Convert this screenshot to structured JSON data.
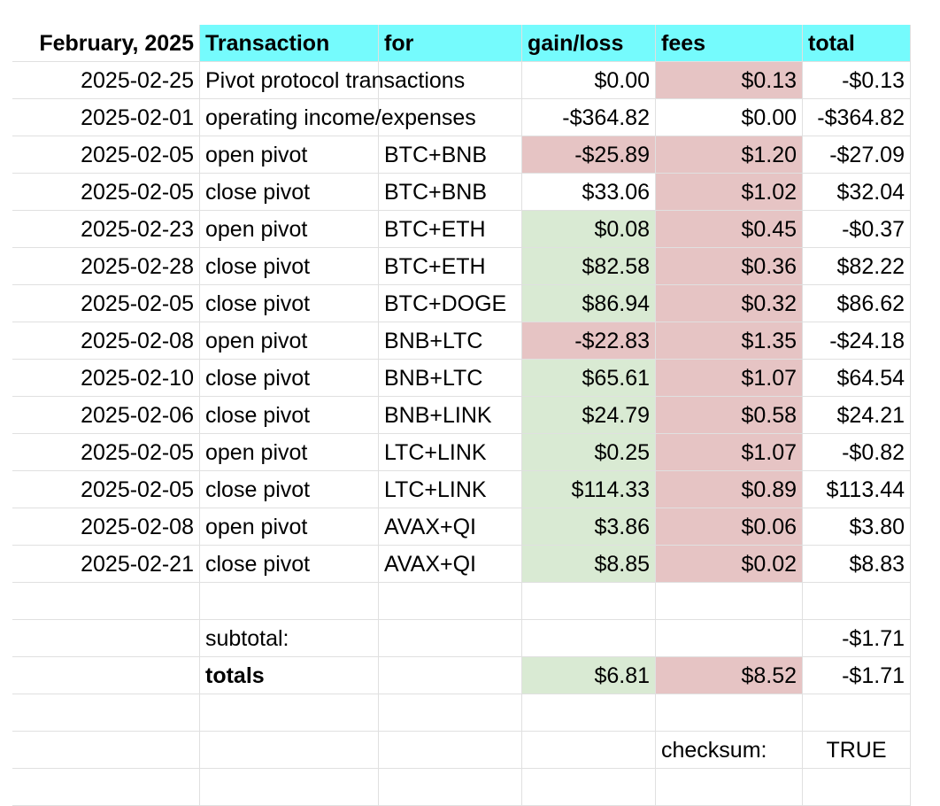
{
  "header": {
    "month": "February, 2025",
    "transaction": "Transaction",
    "for": "for",
    "gain_loss": "gain/loss",
    "fees": "fees",
    "total": "total"
  },
  "rows": [
    {
      "date": "2025-02-25",
      "transaction": "Pivot protocol transactions",
      "for": "",
      "gain": "$0.00",
      "fees": "$0.13",
      "total": "-$0.13",
      "gain_color": "none",
      "fees_color": "red"
    },
    {
      "date": "2025-02-01",
      "transaction": "operating income/expenses",
      "for": "",
      "gain": "-$364.82",
      "fees": "$0.00",
      "total": "-$364.82",
      "gain_color": "none",
      "fees_color": "none"
    },
    {
      "date": "2025-02-05",
      "transaction": "open pivot",
      "for": "BTC+BNB",
      "gain": "-$25.89",
      "fees": "$1.20",
      "total": "-$27.09",
      "gain_color": "red",
      "fees_color": "red"
    },
    {
      "date": "2025-02-05",
      "transaction": "close pivot",
      "for": "BTC+BNB",
      "gain": "$33.06",
      "fees": "$1.02",
      "total": "$32.04",
      "gain_color": "none",
      "fees_color": "red"
    },
    {
      "date": "2025-02-23",
      "transaction": "open pivot",
      "for": "BTC+ETH",
      "gain": "$0.08",
      "fees": "$0.45",
      "total": "-$0.37",
      "gain_color": "green",
      "fees_color": "red"
    },
    {
      "date": "2025-02-28",
      "transaction": "close pivot",
      "for": "BTC+ETH",
      "gain": "$82.58",
      "fees": "$0.36",
      "total": "$82.22",
      "gain_color": "green",
      "fees_color": "red"
    },
    {
      "date": "2025-02-05",
      "transaction": "close pivot",
      "for": "BTC+DOGE",
      "gain": "$86.94",
      "fees": "$0.32",
      "total": "$86.62",
      "gain_color": "green",
      "fees_color": "red"
    },
    {
      "date": "2025-02-08",
      "transaction": "open pivot",
      "for": "BNB+LTC",
      "gain": "-$22.83",
      "fees": "$1.35",
      "total": "-$24.18",
      "gain_color": "red",
      "fees_color": "red"
    },
    {
      "date": "2025-02-10",
      "transaction": "close pivot",
      "for": "BNB+LTC",
      "gain": "$65.61",
      "fees": "$1.07",
      "total": "$64.54",
      "gain_color": "green",
      "fees_color": "red"
    },
    {
      "date": "2025-02-06",
      "transaction": "close pivot",
      "for": "BNB+LINK",
      "gain": "$24.79",
      "fees": "$0.58",
      "total": "$24.21",
      "gain_color": "green",
      "fees_color": "red"
    },
    {
      "date": "2025-02-05",
      "transaction": "open pivot",
      "for": "LTC+LINK",
      "gain": "$0.25",
      "fees": "$1.07",
      "total": "-$0.82",
      "gain_color": "green",
      "fees_color": "red"
    },
    {
      "date": "2025-02-05",
      "transaction": "close pivot",
      "for": "LTC+LINK",
      "gain": "$114.33",
      "fees": "$0.89",
      "total": "$113.44",
      "gain_color": "green",
      "fees_color": "red"
    },
    {
      "date": "2025-02-08",
      "transaction": "open pivot",
      "for": "AVAX+QI",
      "gain": "$3.86",
      "fees": "$0.06",
      "total": "$3.80",
      "gain_color": "green",
      "fees_color": "red"
    },
    {
      "date": "2025-02-21",
      "transaction": "close pivot",
      "for": "AVAX+QI",
      "gain": "$8.85",
      "fees": "$0.02",
      "total": "$8.83",
      "gain_color": "green",
      "fees_color": "red"
    }
  ],
  "subtotal": {
    "label": "subtotal:",
    "total": "-$1.71"
  },
  "totals": {
    "label": "totals",
    "gain": "$6.81",
    "fees": "$8.52",
    "total": "-$1.71"
  },
  "checksum": {
    "label": "checksum:",
    "value": "TRUE"
  },
  "colors": {
    "header_bg": "#75fbfd",
    "green": "#d9ead3",
    "red": "#e6c4c4",
    "gridline": "#e0e0e0"
  }
}
